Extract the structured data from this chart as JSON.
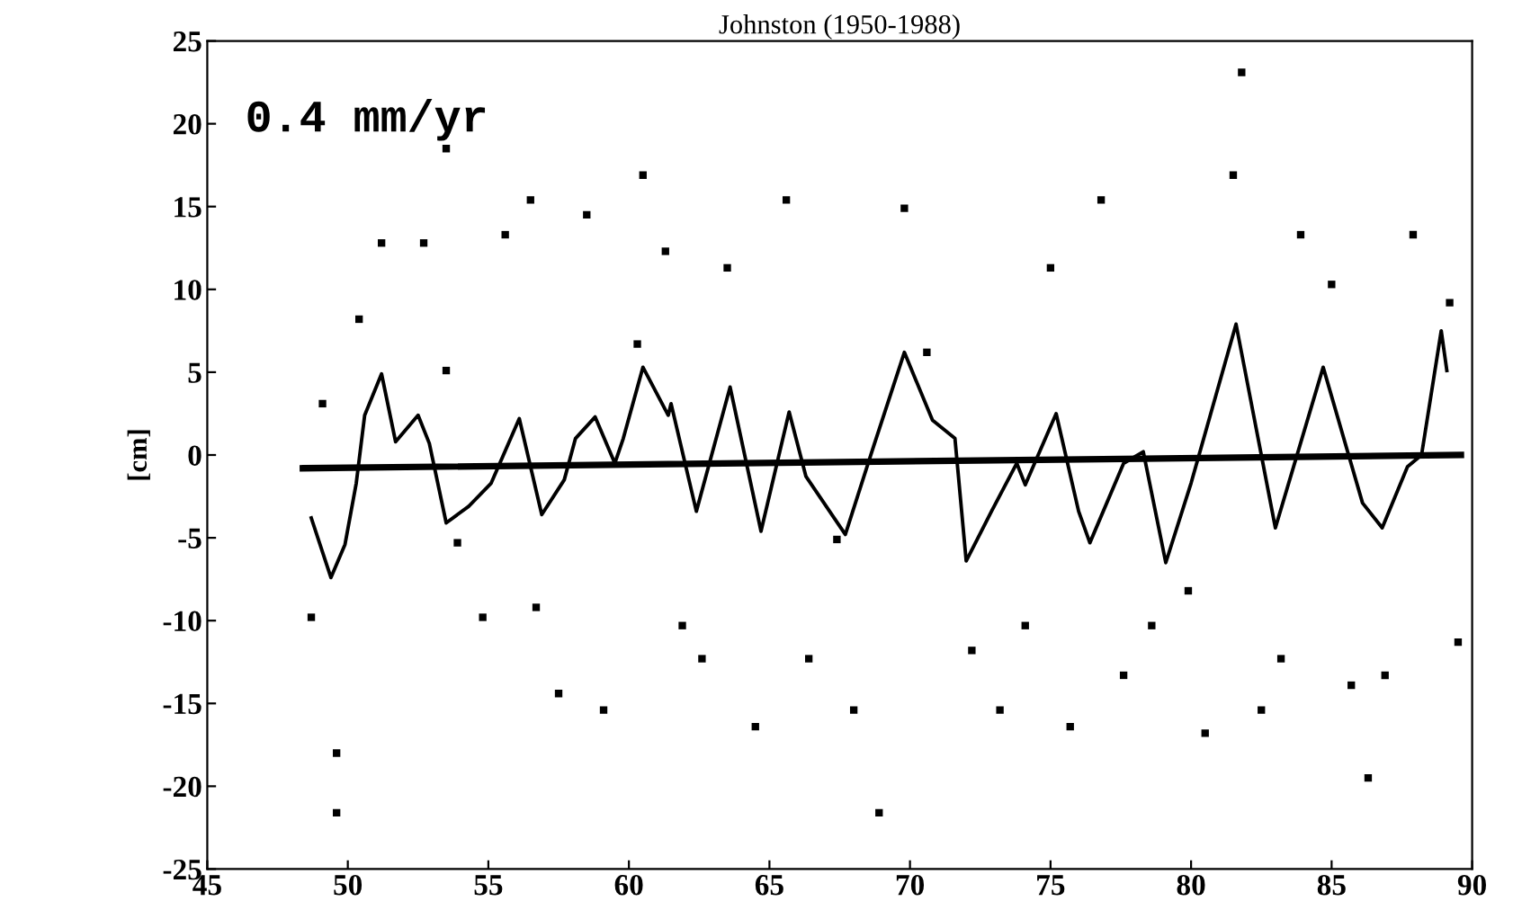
{
  "chart_data": {
    "type": "line",
    "title": "Johnston (1950-1988)",
    "ylabel": "[cm]",
    "annotations": [
      "0.4 mm/yr"
    ],
    "xlim": [
      45,
      90
    ],
    "xticks": [
      45,
      50,
      55,
      60,
      65,
      70,
      75,
      80,
      85,
      90
    ],
    "ylim": [
      -25,
      25
    ],
    "yticks": [
      -25,
      -20,
      -15,
      -10,
      -5,
      0,
      5,
      10,
      15,
      20,
      25
    ],
    "grid": false,
    "legend": false,
    "series": [
      {
        "type": "scatter",
        "marker": "square",
        "color": "#000000",
        "x": [
          48.7,
          49.1,
          49.6,
          49.6,
          50.4,
          51.2,
          52.7,
          53.5,
          53.5,
          53.9,
          54.8,
          55.6,
          56.5,
          56.7,
          57.5,
          58.5,
          59.1,
          60.3,
          60.5,
          61.3,
          61.9,
          62.6,
          63.5,
          64.5,
          65.6,
          66.4,
          67.4,
          68.0,
          68.9,
          69.8,
          70.6,
          72.2,
          73.2,
          74.1,
          75.0,
          75.7,
          76.8,
          77.6,
          78.6,
          79.9,
          80.5,
          81.5,
          81.8,
          82.5,
          83.2,
          83.9,
          85.0,
          85.7,
          86.3,
          86.9,
          87.9,
          89.2,
          89.5
        ],
        "values": [
          -9.8,
          3.1,
          -21.6,
          -18,
          8.2,
          12.8,
          12.8,
          18.5,
          5.1,
          -5.3,
          -9.8,
          13.3,
          15.4,
          -9.2,
          -14.4,
          14.5,
          -15.4,
          6.7,
          16.9,
          12.3,
          -10.3,
          -12.3,
          11.3,
          -16.4,
          15.4,
          -12.3,
          -5.1,
          -15.4,
          -21.6,
          14.9,
          6.2,
          -11.8,
          -15.4,
          -10.3,
          11.3,
          -16.4,
          15.4,
          -13.3,
          -10.3,
          -8.2,
          -16.8,
          16.9,
          23.1,
          -15.4,
          -12.3,
          13.3,
          10.3,
          -13.9,
          -19.5,
          -13.3,
          13.3,
          9.2,
          -11.3
        ]
      },
      {
        "color": "#000000",
        "x": [
          48.7,
          49.4,
          49.9,
          50.3,
          50.6,
          51.2,
          51.7,
          52.5,
          52.9,
          53.5,
          54.3,
          55.1,
          56.1,
          56.9,
          57.7,
          58.1,
          58.8,
          59.5,
          59.8,
          60.5,
          61.4,
          61.5,
          62.4,
          63.6,
          64.7,
          65.7,
          66.3,
          67.7,
          68.7,
          69.8,
          70.8,
          71.6,
          72.0,
          72.9,
          73.8,
          74.1,
          75.2,
          76.0,
          76.4,
          77.6,
          78.3,
          79.1,
          80.0,
          81.6,
          83.0,
          84.7,
          86.1,
          86.8,
          87.7,
          88.2,
          88.9,
          89.1
        ],
        "values": [
          -3.8,
          -7.4,
          -5.4,
          -1.7,
          2.4,
          4.9,
          0.8,
          2.4,
          0.7,
          -4.1,
          -3.1,
          -1.7,
          2.2,
          -3.6,
          -1.5,
          1.0,
          2.3,
          -0.5,
          1.0,
          5.3,
          2.4,
          3.1,
          -3.4,
          4.1,
          -4.6,
          2.6,
          -1.3,
          -4.8,
          0.5,
          6.2,
          2.1,
          1.0,
          -6.4,
          -3.4,
          -0.5,
          -1.8,
          2.5,
          -3.4,
          -5.3,
          -0.5,
          0.2,
          -6.5,
          -1.7,
          7.9,
          -4.4,
          5.3,
          -2.9,
          -4.4,
          -0.7,
          0.0,
          7.5,
          5.1
        ]
      },
      {
        "color": "#000000",
        "x": [
          48.4,
          89.6
        ],
        "values": [
          -0.8,
          0.0
        ]
      }
    ]
  }
}
